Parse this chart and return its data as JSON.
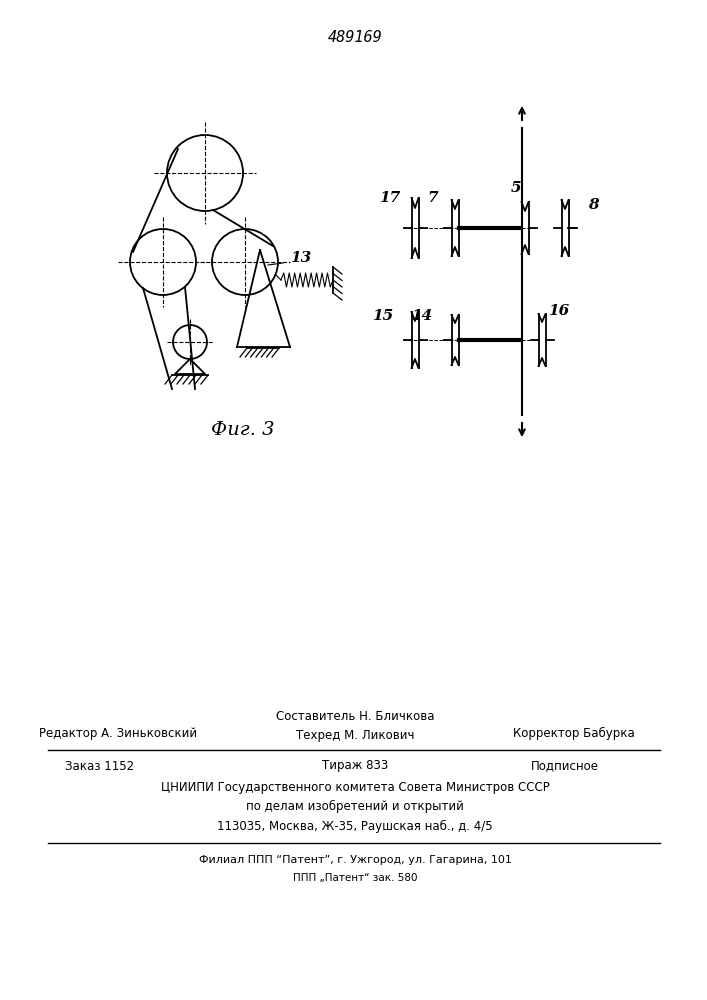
{
  "patent_number": "489169",
  "fig_label": "Фиг. 3",
  "label_13": "13",
  "label_17": "17",
  "label_7": "7",
  "label_5": "5",
  "label_8": "8",
  "label_15": "15",
  "label_14": "14",
  "label_16": "16",
  "footer_redaktor": "Редактор А. Зиньковский",
  "footer_sostavitel": "Составитель Н. Бличкова",
  "footer_tehred": "Техред М. Ликович",
  "footer_korrektor": "Корректор Бабурка",
  "footer_zakaz": "Заказ 1152",
  "footer_tirazh": "Тираж 833",
  "footer_podpisnoe": "Подписное",
  "footer_org": "ЦНИИПИ Государственного комитета Совета Министров СССР",
  "footer_dept": "по делам изобретений и открытий",
  "footer_addr": "113035, Москва, Ж-35, Раушская наб., д. 4/5",
  "footer_filial": "Филиал ППП “Патент”, г. Ужгород, ул. Гагарина, 101",
  "footer_ppp": "ППП „Патент“ зак. 580"
}
